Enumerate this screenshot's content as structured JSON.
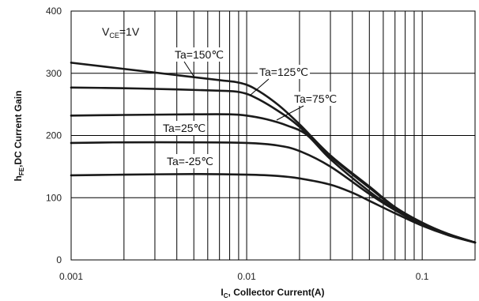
{
  "chart_data": {
    "type": "line",
    "xscale": "log",
    "xlim": [
      0.001,
      0.2
    ],
    "ylim": [
      0,
      400
    ],
    "xlabel": {
      "main": "I",
      "sub": "C",
      "rest": ", Collector Current(A)"
    },
    "ylabel": {
      "main": "h",
      "sub": "FE",
      "rest": ",DC Current Gain"
    },
    "x_tick_labels": [
      {
        "value": 0.001,
        "label": "0.001"
      },
      {
        "value": 0.01,
        "label": "0.01"
      },
      {
        "value": 0.1,
        "label": "0.1"
      }
    ],
    "y_ticks": [
      0,
      100,
      200,
      300,
      400
    ],
    "grid": "major and minor",
    "condition": {
      "main": "V",
      "sub": "CE",
      "rest": "=1V"
    },
    "series": [
      {
        "name": "Ta=150℃",
        "x": [
          0.001,
          0.002,
          0.004,
          0.007,
          0.009,
          0.011,
          0.015,
          0.02,
          0.03,
          0.05,
          0.07,
          0.1,
          0.14,
          0.2
        ],
        "y": [
          317,
          307,
          297,
          289,
          285,
          276,
          250,
          218,
          168,
          118,
          85,
          60,
          42,
          28
        ]
      },
      {
        "name": "Ta=125℃",
        "x": [
          0.001,
          0.002,
          0.004,
          0.007,
          0.009,
          0.011,
          0.015,
          0.02,
          0.03,
          0.05,
          0.07,
          0.1,
          0.14,
          0.2
        ],
        "y": [
          277,
          276,
          274,
          272,
          270,
          262,
          240,
          214,
          166,
          116,
          84,
          59,
          42,
          28
        ]
      },
      {
        "name": "Ta=75℃",
        "x": [
          0.001,
          0.002,
          0.005,
          0.008,
          0.01,
          0.013,
          0.017,
          0.022,
          0.03,
          0.05,
          0.07,
          0.1,
          0.14,
          0.2
        ],
        "y": [
          232,
          233,
          234,
          234,
          232,
          226,
          216,
          201,
          162,
          110,
          82,
          58,
          41,
          28
        ]
      },
      {
        "name": "Ta=25℃",
        "x": [
          0.001,
          0.002,
          0.005,
          0.01,
          0.015,
          0.02,
          0.03,
          0.05,
          0.07,
          0.1,
          0.14,
          0.2
        ],
        "y": [
          188,
          189,
          189,
          188,
          184,
          175,
          150,
          106,
          80,
          57,
          40,
          28
        ]
      },
      {
        "name": "Ta=-25℃",
        "x": [
          0.001,
          0.002,
          0.005,
          0.01,
          0.015,
          0.02,
          0.03,
          0.04,
          0.05,
          0.07,
          0.1,
          0.14,
          0.2
        ],
        "y": [
          136,
          137,
          138,
          137,
          135,
          131,
          121,
          108,
          95,
          75,
          55,
          40,
          28
        ]
      }
    ],
    "annotations": [
      {
        "series": "Ta=150℃",
        "text": "Ta=150℃"
      },
      {
        "series": "Ta=125℃",
        "text": "Ta=125℃"
      },
      {
        "series": "Ta=75℃",
        "text": "Ta=75℃"
      },
      {
        "series": "Ta=25℃",
        "text": "Ta=25℃"
      },
      {
        "series": "Ta=-25℃",
        "text": "Ta=-25℃"
      }
    ]
  }
}
